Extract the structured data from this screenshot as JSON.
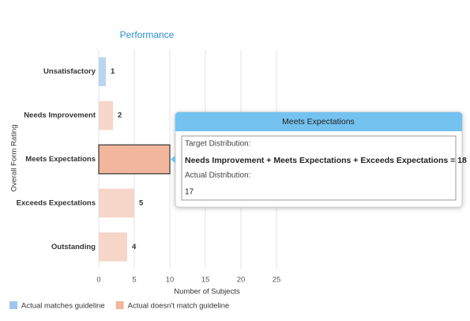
{
  "chart_data": {
    "type": "bar",
    "orientation": "horizontal",
    "title": "Performance",
    "categories": [
      "Unsatisfactory",
      "Needs Improvement",
      "Meets Expectations",
      "Exceeds Expectations",
      "Outstanding"
    ],
    "values": [
      1,
      2,
      10,
      5,
      4
    ],
    "bar_colors": [
      "#b9d5f0",
      "#f6d6c8",
      "#f2b69c",
      "#f6d6c8",
      "#f6d6c8"
    ],
    "xlim": [
      0,
      25
    ],
    "xticks": [
      0,
      5,
      10,
      15,
      20,
      25
    ],
    "grid": true,
    "xlabel": "Number of Subjects",
    "ylabel": "Overall Form Rating",
    "legend": [
      {
        "name": "Actual matches guideline",
        "color": "#9fc6ec"
      },
      {
        "name": "Actual doesn't match guideline",
        "color": "#f2b69c"
      }
    ],
    "tooltip": {
      "category": 2,
      "target_label": "Target Distribution:",
      "target_formula": "Needs Improvement + Meets Expectations + Exceeds Expectations = 18",
      "actual_label": "Actual Distribution:",
      "actual_value": "17"
    }
  }
}
